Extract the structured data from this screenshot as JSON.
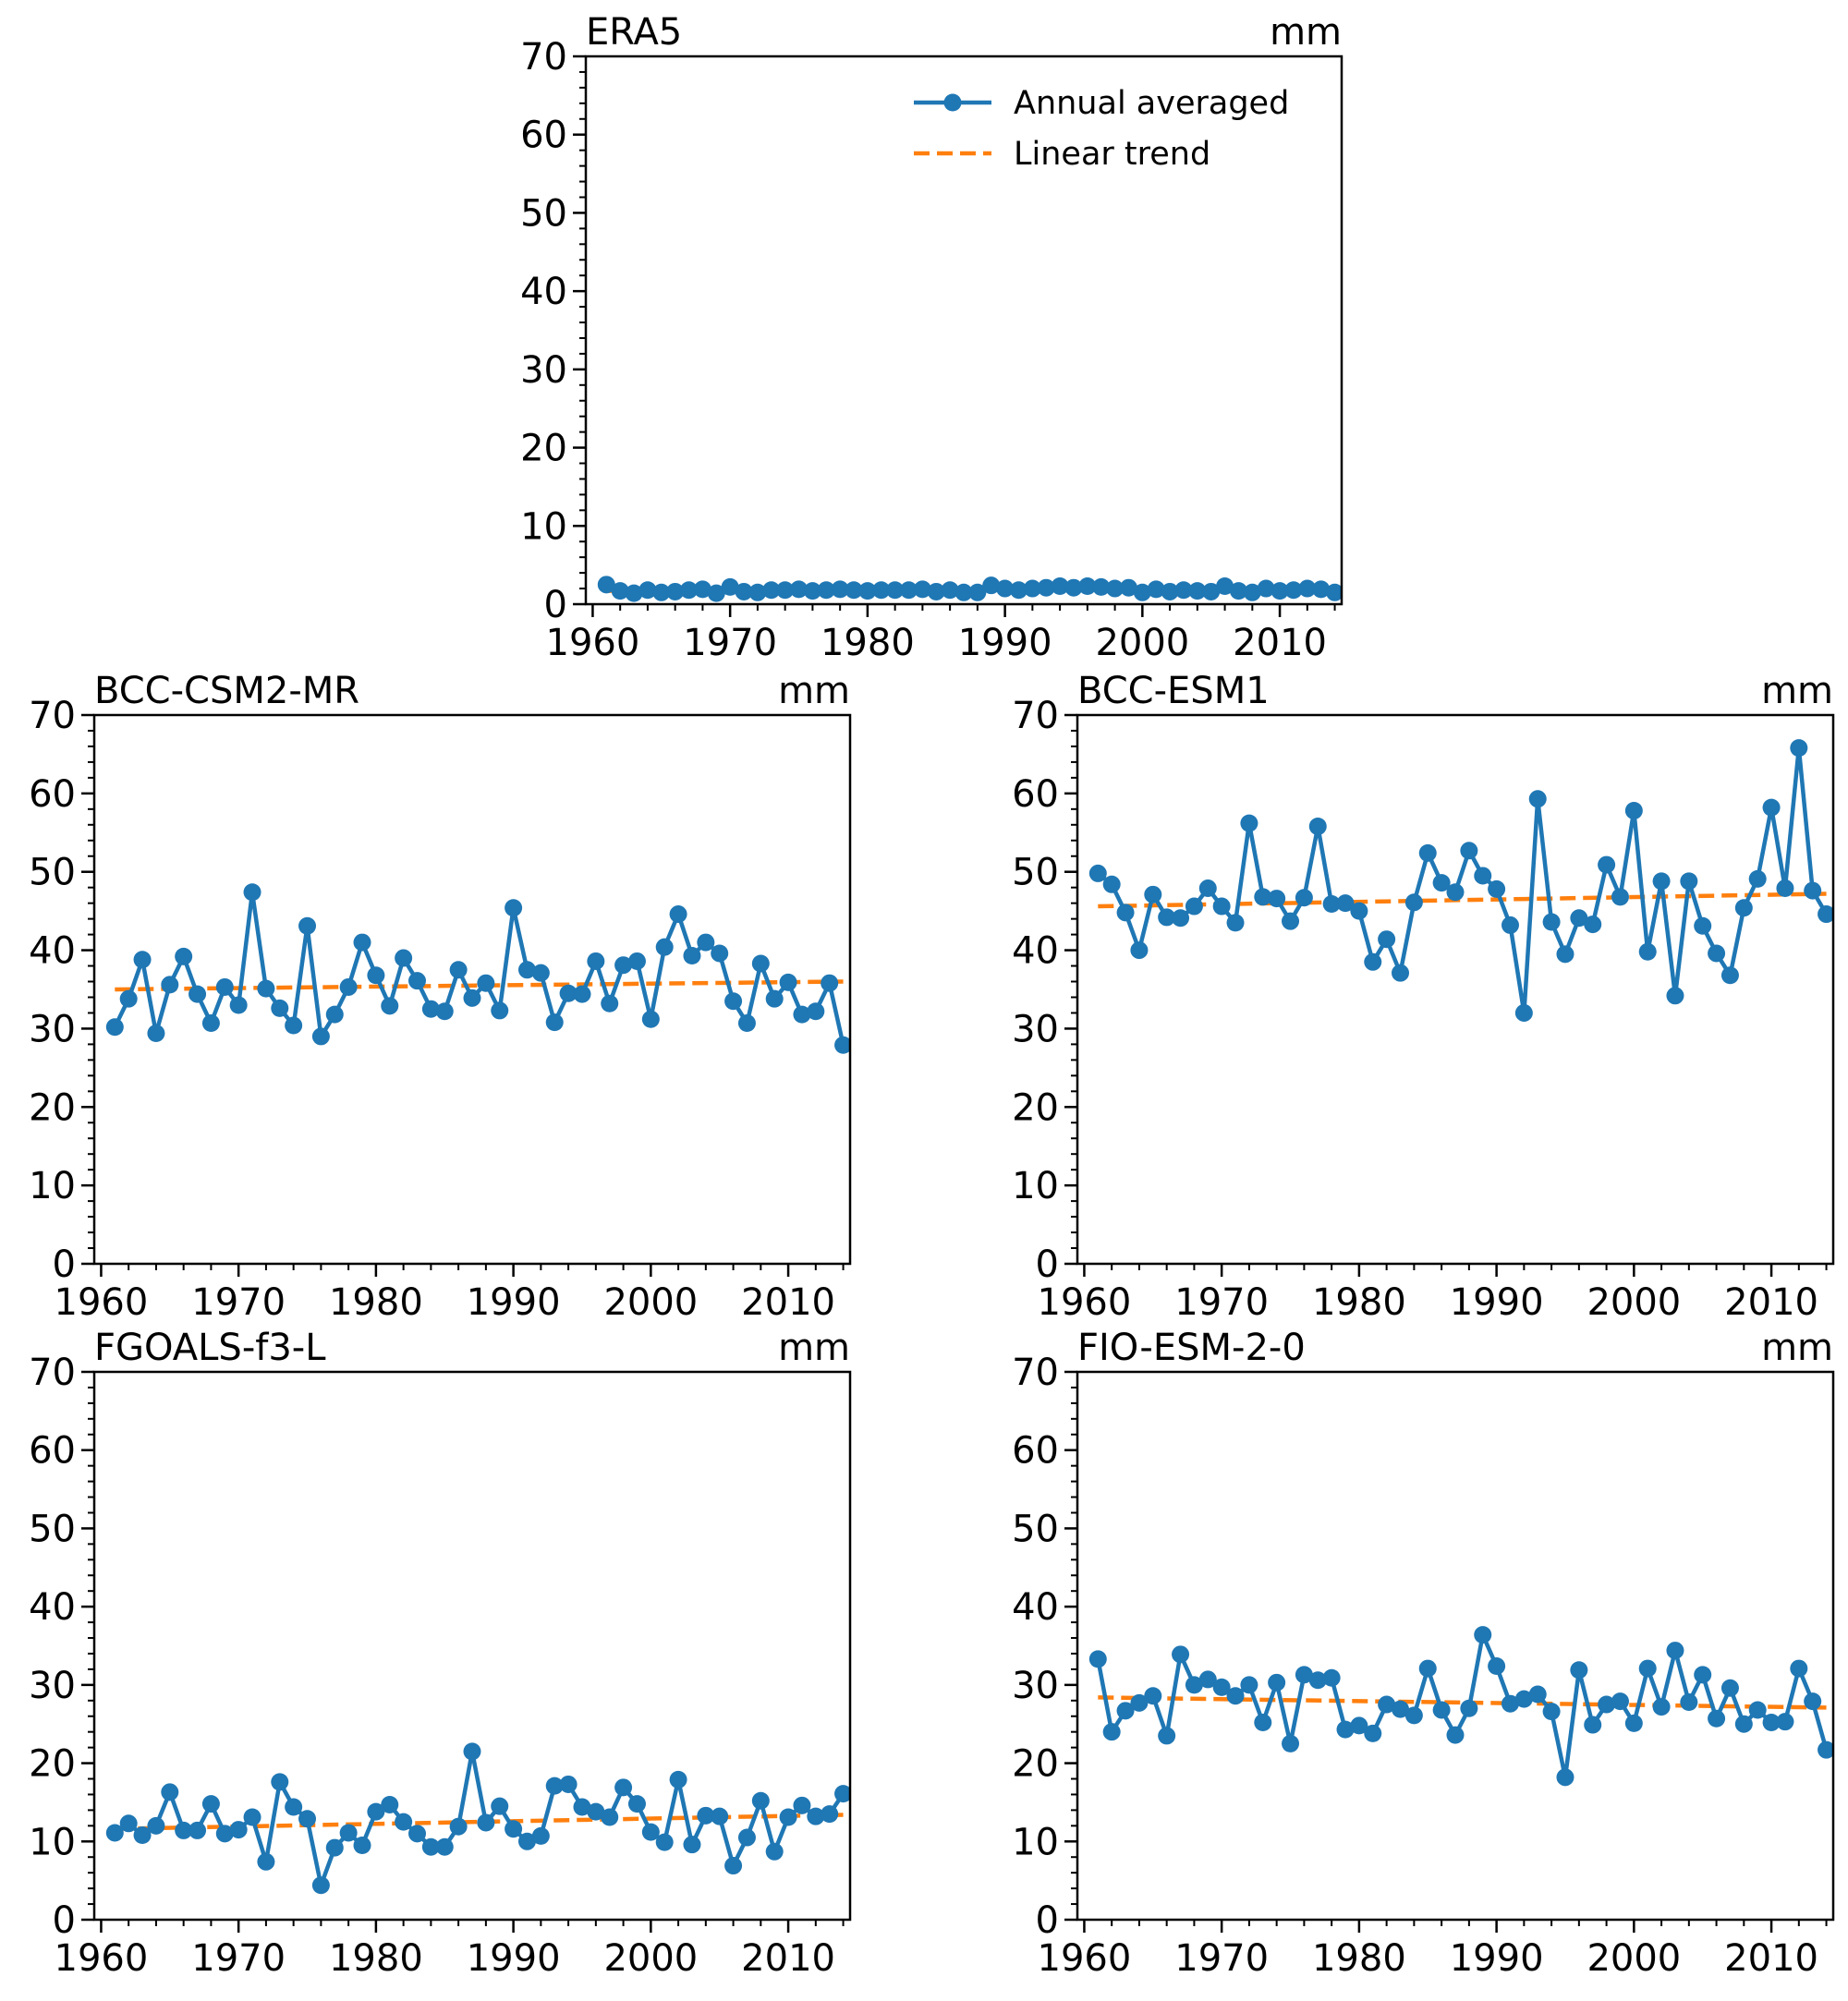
{
  "chart_data": [
    {
      "type": "line",
      "title": "ERA5",
      "unit": "mm",
      "xlim": [
        1959.5,
        2014.5
      ],
      "ylim": [
        0,
        70
      ],
      "xticks": [
        1960,
        1970,
        1980,
        1990,
        2000,
        2010
      ],
      "yticks": [
        0,
        10,
        20,
        30,
        40,
        50,
        60,
        70
      ],
      "years": [
        1961,
        1962,
        1963,
        1964,
        1965,
        1966,
        1967,
        1968,
        1969,
        1970,
        1971,
        1972,
        1973,
        1974,
        1975,
        1976,
        1977,
        1978,
        1979,
        1980,
        1981,
        1982,
        1983,
        1984,
        1985,
        1986,
        1987,
        1988,
        1989,
        1990,
        1991,
        1992,
        1993,
        1994,
        1995,
        1996,
        1997,
        1998,
        1999,
        2000,
        2001,
        2002,
        2003,
        2004,
        2005,
        2006,
        2007,
        2008,
        2009,
        2010,
        2011,
        2012,
        2013,
        2014
      ],
      "series": [
        {
          "name": "Annual averaged",
          "values": [
            2.5,
            1.7,
            1.4,
            1.8,
            1.5,
            1.6,
            1.8,
            1.9,
            1.4,
            2.2,
            1.6,
            1.5,
            1.8,
            1.8,
            1.9,
            1.7,
            1.8,
            1.9,
            1.8,
            1.7,
            1.8,
            1.8,
            1.8,
            1.9,
            1.6,
            1.8,
            1.5,
            1.5,
            2.4,
            2.0,
            1.8,
            2.0,
            2.1,
            2.3,
            2.1,
            2.3,
            2.2,
            2.0,
            2.1,
            1.5,
            1.9,
            1.6,
            1.8,
            1.7,
            1.6,
            2.3,
            1.7,
            1.5,
            2.0,
            1.7,
            1.8,
            2.0,
            1.9,
            1.5
          ]
        },
        {
          "name": "Linear trend",
          "values": [
            1.7,
            1.9
          ]
        }
      ],
      "legend": {
        "placement": "top-right",
        "entries": [
          "Annual averaged",
          "Linear trend"
        ]
      }
    },
    {
      "type": "line",
      "title": "BCC-CSM2-MR",
      "unit": "mm",
      "xlim": [
        1959.5,
        2014.5
      ],
      "ylim": [
        0,
        70
      ],
      "xticks": [
        1960,
        1970,
        1980,
        1990,
        2000,
        2010
      ],
      "yticks": [
        0,
        10,
        20,
        30,
        40,
        50,
        60,
        70
      ],
      "years": [
        1961,
        1962,
        1963,
        1964,
        1965,
        1966,
        1967,
        1968,
        1969,
        1970,
        1971,
        1972,
        1973,
        1974,
        1975,
        1976,
        1977,
        1978,
        1979,
        1980,
        1981,
        1982,
        1983,
        1984,
        1985,
        1986,
        1987,
        1988,
        1989,
        1990,
        1991,
        1992,
        1993,
        1994,
        1995,
        1996,
        1997,
        1998,
        1999,
        2000,
        2001,
        2002,
        2003,
        2004,
        2005,
        2006,
        2007,
        2008,
        2009,
        2010,
        2011,
        2012,
        2013,
        2014
      ],
      "series": [
        {
          "name": "Annual averaged",
          "values": [
            30.2,
            33.8,
            38.8,
            29.4,
            35.6,
            39.2,
            34.4,
            30.7,
            35.3,
            33.0,
            47.4,
            35.1,
            32.6,
            30.4,
            43.1,
            29.0,
            31.8,
            35.3,
            41.0,
            36.8,
            32.9,
            39.0,
            36.1,
            32.5,
            32.2,
            37.5,
            33.9,
            35.8,
            32.3,
            45.4,
            37.5,
            37.1,
            30.8,
            34.5,
            34.4,
            38.6,
            33.2,
            38.1,
            38.6,
            31.2,
            40.4,
            44.6,
            39.3,
            41.0,
            39.6,
            33.5,
            30.7,
            38.3,
            33.8,
            35.9,
            31.8,
            32.2,
            35.8,
            27.9
          ]
        },
        {
          "name": "Linear trend",
          "values": [
            35.0,
            36.0
          ]
        }
      ]
    },
    {
      "type": "line",
      "title": "BCC-ESM1",
      "unit": "mm",
      "xlim": [
        1959.5,
        2014.5
      ],
      "ylim": [
        0,
        70
      ],
      "xticks": [
        1960,
        1970,
        1980,
        1990,
        2000,
        2010
      ],
      "yticks": [
        0,
        10,
        20,
        30,
        40,
        50,
        60,
        70
      ],
      "years": [
        1961,
        1962,
        1963,
        1964,
        1965,
        1966,
        1967,
        1968,
        1969,
        1970,
        1971,
        1972,
        1973,
        1974,
        1975,
        1976,
        1977,
        1978,
        1979,
        1980,
        1981,
        1982,
        1983,
        1984,
        1985,
        1986,
        1987,
        1988,
        1989,
        1990,
        1991,
        1992,
        1993,
        1994,
        1995,
        1996,
        1997,
        1998,
        1999,
        2000,
        2001,
        2002,
        2003,
        2004,
        2005,
        2006,
        2007,
        2008,
        2009,
        2010,
        2011,
        2012,
        2013,
        2014
      ],
      "series": [
        {
          "name": "Annual averaged",
          "values": [
            49.8,
            48.4,
            44.8,
            40.0,
            47.1,
            44.2,
            44.1,
            45.6,
            47.9,
            45.6,
            43.5,
            56.2,
            46.8,
            46.6,
            43.7,
            46.7,
            55.8,
            45.9,
            46.0,
            45.0,
            38.5,
            41.4,
            37.1,
            46.1,
            52.4,
            48.6,
            47.4,
            52.7,
            49.5,
            47.8,
            43.2,
            32.0,
            59.3,
            43.6,
            39.5,
            44.1,
            43.3,
            50.9,
            46.8,
            57.8,
            39.8,
            48.8,
            34.2,
            48.8,
            43.1,
            39.6,
            36.8,
            45.4,
            49.1,
            58.2,
            47.9,
            65.8,
            47.6,
            44.6
          ]
        },
        {
          "name": "Linear trend",
          "values": [
            45.6,
            47.2
          ]
        }
      ]
    },
    {
      "type": "line",
      "title": "FGOALS-f3-L",
      "unit": "mm",
      "xlim": [
        1959.5,
        2014.5
      ],
      "ylim": [
        0,
        70
      ],
      "xticks": [
        1960,
        1970,
        1980,
        1990,
        2000,
        2010
      ],
      "yticks": [
        0,
        10,
        20,
        30,
        40,
        50,
        60,
        70
      ],
      "years": [
        1961,
        1962,
        1963,
        1964,
        1965,
        1966,
        1967,
        1968,
        1969,
        1970,
        1971,
        1972,
        1973,
        1974,
        1975,
        1976,
        1977,
        1978,
        1979,
        1980,
        1981,
        1982,
        1983,
        1984,
        1985,
        1986,
        1987,
        1988,
        1989,
        1990,
        1991,
        1992,
        1993,
        1994,
        1995,
        1996,
        1997,
        1998,
        1999,
        2000,
        2001,
        2002,
        2003,
        2004,
        2005,
        2006,
        2007,
        2008,
        2009,
        2010,
        2011,
        2012,
        2013,
        2014
      ],
      "series": [
        {
          "name": "Annual averaged",
          "values": [
            11.1,
            12.3,
            10.8,
            12.0,
            16.3,
            11.4,
            11.4,
            14.8,
            11.0,
            11.5,
            13.1,
            7.4,
            17.6,
            14.4,
            12.9,
            4.4,
            9.2,
            11.1,
            9.5,
            13.8,
            14.7,
            12.5,
            11.0,
            9.3,
            9.3,
            11.9,
            21.5,
            12.4,
            14.5,
            11.6,
            10.0,
            10.7,
            17.1,
            17.3,
            14.4,
            13.8,
            13.1,
            16.9,
            14.8,
            11.2,
            9.9,
            17.9,
            9.6,
            13.3,
            13.2,
            6.9,
            10.5,
            15.2,
            8.7,
            13.1,
            14.6,
            13.2,
            13.5,
            16.1
          ]
        },
        {
          "name": "Linear trend",
          "values": [
            11.6,
            13.4
          ]
        }
      ]
    },
    {
      "type": "line",
      "title": "FIO-ESM-2-0",
      "unit": "mm",
      "xlim": [
        1959.5,
        2014.5
      ],
      "ylim": [
        0,
        70
      ],
      "xticks": [
        1960,
        1970,
        1980,
        1990,
        2000,
        2010
      ],
      "yticks": [
        0,
        10,
        20,
        30,
        40,
        50,
        60,
        70
      ],
      "years": [
        1961,
        1962,
        1963,
        1964,
        1965,
        1966,
        1967,
        1968,
        1969,
        1970,
        1971,
        1972,
        1973,
        1974,
        1975,
        1976,
        1977,
        1978,
        1979,
        1980,
        1981,
        1982,
        1983,
        1984,
        1985,
        1986,
        1987,
        1988,
        1989,
        1990,
        1991,
        1992,
        1993,
        1994,
        1995,
        1996,
        1997,
        1998,
        1999,
        2000,
        2001,
        2002,
        2003,
        2004,
        2005,
        2006,
        2007,
        2008,
        2009,
        2010,
        2011,
        2012,
        2013,
        2014
      ],
      "series": [
        {
          "name": "Annual averaged",
          "values": [
            33.3,
            24.0,
            26.7,
            27.7,
            28.6,
            23.5,
            33.9,
            30.0,
            30.7,
            29.7,
            28.6,
            30.0,
            25.2,
            30.3,
            22.5,
            31.3,
            30.6,
            30.9,
            24.3,
            24.8,
            23.8,
            27.5,
            26.9,
            26.1,
            32.1,
            26.8,
            23.6,
            27.0,
            36.4,
            32.4,
            27.6,
            28.2,
            28.8,
            26.6,
            18.2,
            31.9,
            24.9,
            27.5,
            27.9,
            25.1,
            32.1,
            27.2,
            34.4,
            27.8,
            31.3,
            25.7,
            29.6,
            25.0,
            26.8,
            25.2,
            25.3,
            32.1,
            27.9,
            21.7
          ]
        },
        {
          "name": "Linear trend",
          "values": [
            28.4,
            27.1
          ]
        }
      ]
    }
  ],
  "style": {
    "series_color": "#1f77b4",
    "trend_color": "#ff7f0e",
    "axis_color": "#000000"
  }
}
